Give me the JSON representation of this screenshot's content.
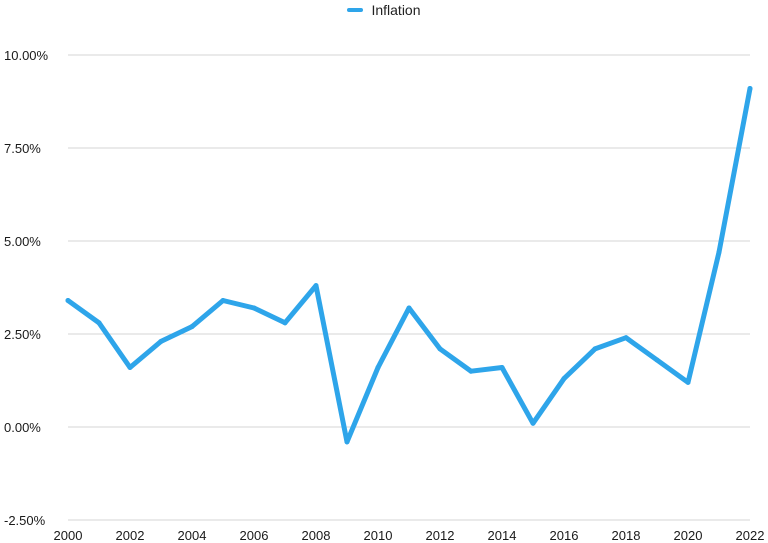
{
  "chart_data": {
    "type": "line",
    "title": "",
    "xlabel": "",
    "ylabel": "",
    "legend_position": "top-center",
    "grid": true,
    "x": [
      2000,
      2001,
      2002,
      2003,
      2004,
      2005,
      2006,
      2007,
      2008,
      2009,
      2010,
      2011,
      2012,
      2013,
      2014,
      2015,
      2016,
      2017,
      2018,
      2019,
      2020,
      2021,
      2022
    ],
    "x_tick_labels": [
      "2000",
      "2002",
      "2004",
      "2006",
      "2008",
      "2010",
      "2012",
      "2014",
      "2016",
      "2018",
      "2020",
      "2022"
    ],
    "xlim": [
      2000,
      2022
    ],
    "ylim": [
      -2.5,
      10
    ],
    "y_tick_values": [
      10,
      7.5,
      5,
      2.5,
      0,
      -2.5
    ],
    "y_tick_labels": [
      "10.00%",
      "7.50%",
      "5.00%",
      "2.50%",
      "0.00%",
      "-2.50%"
    ],
    "series": [
      {
        "name": "Inflation",
        "color": "#2ea5ea",
        "values": [
          3.4,
          2.8,
          1.6,
          2.3,
          2.7,
          3.4,
          3.2,
          2.8,
          3.8,
          -0.4,
          1.6,
          3.2,
          2.1,
          1.5,
          1.6,
          0.1,
          1.3,
          2.1,
          2.4,
          1.8,
          1.2,
          4.7,
          9.1
        ]
      }
    ]
  }
}
